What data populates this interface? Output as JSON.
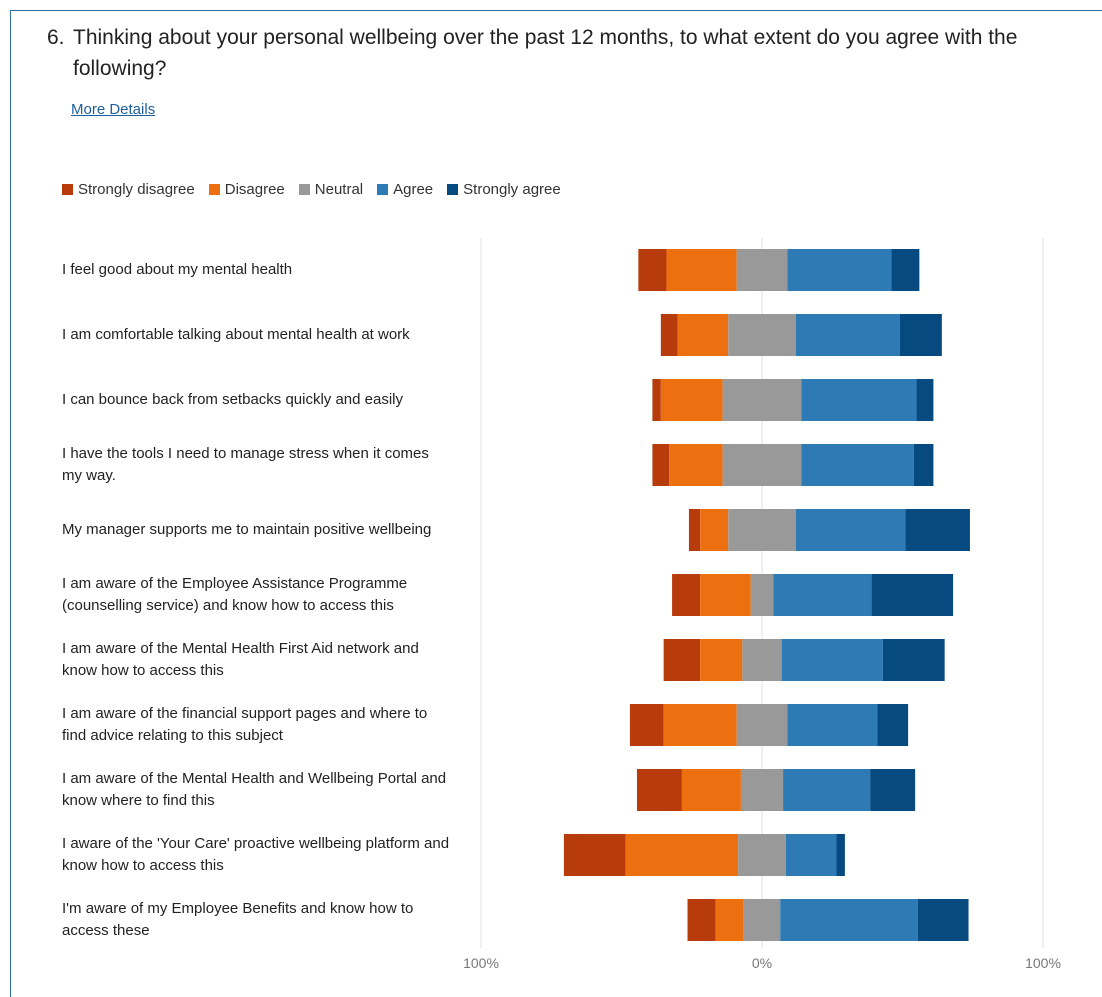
{
  "question": {
    "number": "6.",
    "text": "Thinking about your personal wellbeing over the past 12 months, to what extent do you agree with the following?"
  },
  "more_details": "More Details",
  "colors": {
    "Strongly disagree": "#b83b0b",
    "Disagree": "#ec7010",
    "Neutral": "#999999",
    "Agree": "#2e7ab5",
    "Strongly agree": "#074a80",
    "gridline": "#e2e2e2",
    "frame": "#2f6ea5"
  },
  "chart_data": {
    "type": "bar",
    "orientation": "horizontal-diverging",
    "legend_position": "top-left",
    "xlim": [
      -100,
      100
    ],
    "xticks": [
      "100%",
      "0%",
      "100%"
    ],
    "categories": [
      "I feel good about my mental health",
      "I am comfortable talking about mental health at work",
      "I can bounce back from setbacks quickly and easily",
      "I have the tools I need to manage stress when it comes my way.",
      "My manager supports me to maintain positive wellbeing",
      "I am aware of the Employee Assistance Programme (counselling service) and know how to access this",
      "I am aware of the Mental Health First Aid network and know how to access this",
      "I am aware of the financial support pages and where to find advice relating to this subject",
      "I am aware of the Mental Health and Wellbeing Portal and know where to find this",
      "I aware of the 'Your Care' proactive wellbeing platform and know how to access this",
      "I'm aware of my Employee Benefits and know how to access these"
    ],
    "series": [
      {
        "name": "Strongly disagree",
        "values": [
          10,
          6,
          3,
          6,
          4,
          10,
          13,
          12,
          16,
          22,
          10
        ]
      },
      {
        "name": "Disagree",
        "values": [
          25,
          18,
          22,
          19,
          10,
          18,
          15,
          26,
          21,
          40,
          10
        ]
      },
      {
        "name": "Neutral",
        "values": [
          18,
          24,
          28,
          28,
          24,
          8,
          14,
          18,
          15,
          17,
          13
        ]
      },
      {
        "name": "Agree",
        "values": [
          37,
          37,
          41,
          40,
          39,
          35,
          36,
          32,
          31,
          18,
          49
        ]
      },
      {
        "name": "Strongly agree",
        "values": [
          10,
          15,
          6,
          7,
          23,
          29,
          22,
          11,
          16,
          3,
          18
        ]
      }
    ]
  }
}
